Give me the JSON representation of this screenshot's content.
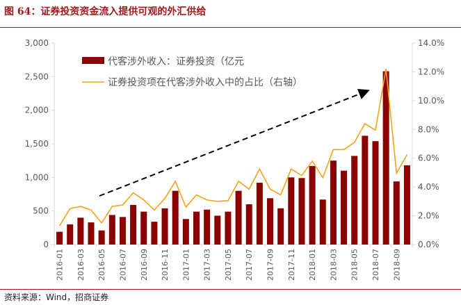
{
  "title": "图 64：证券投资资金流入提供可观的外汇供给",
  "source": "资料来源：Wind，招商证券",
  "chart_data": {
    "type": "bar+line",
    "x": [
      "2016-01",
      "2016-02",
      "2016-03",
      "2016-04",
      "2016-05",
      "2016-06",
      "2016-07",
      "2016-08",
      "2016-09",
      "2016-10",
      "2016-11",
      "2016-12",
      "2017-01",
      "2017-02",
      "2017-03",
      "2017-04",
      "2017-05",
      "2017-06",
      "2017-07",
      "2017-08",
      "2017-09",
      "2017-10",
      "2017-11",
      "2017-12",
      "2018-01",
      "2018-02",
      "2018-03",
      "2018-04",
      "2018-05",
      "2018-06",
      "2018-07",
      "2018-08",
      "2018-09",
      "2018-10"
    ],
    "x_tick_labels": [
      "2016-01",
      "2016-03",
      "2016-05",
      "2016-07",
      "2016-09",
      "2016-11",
      "2017-01",
      "2017-03",
      "2017-05",
      "2017-07",
      "2017-09",
      "2017-11",
      "2018-01",
      "2018-03",
      "2018-05",
      "2018-07",
      "2018-09"
    ],
    "series": [
      {
        "name": "代客涉外收入：证券投资（亿元",
        "type": "bar",
        "axis": "left",
        "color": "#8b0000",
        "values": [
          190,
          300,
          400,
          330,
          210,
          440,
          410,
          590,
          490,
          340,
          540,
          800,
          380,
          490,
          520,
          430,
          490,
          800,
          600,
          920,
          690,
          540,
          1000,
          990,
          1170,
          670,
          1250,
          1100,
          1320,
          1620,
          1540,
          2580,
          940,
          1180
        ]
      },
      {
        "name": "证券投资项在代客涉外收入中的占比（右轴）",
        "type": "line",
        "axis": "right",
        "color": "#f5a21b",
        "values": [
          1.3,
          2.5,
          2.65,
          2.4,
          1.5,
          2.65,
          2.75,
          3.6,
          3.1,
          2.4,
          3.2,
          4.4,
          2.6,
          3.45,
          3.1,
          3.0,
          3.05,
          4.4,
          3.85,
          5.25,
          3.85,
          3.45,
          5.25,
          4.8,
          5.8,
          4.65,
          6.6,
          6.6,
          7.1,
          8.4,
          7.95,
          12.2,
          4.95,
          6.25
        ]
      }
    ],
    "left_axis": {
      "range": [
        0,
        3000
      ],
      "ticks": [
        "0",
        "500",
        "1,000",
        "1,500",
        "2,000",
        "2,500",
        "3,000"
      ]
    },
    "right_axis": {
      "range": [
        0,
        14
      ],
      "ticks": [
        "0.0%",
        "2.0%",
        "4.0%",
        "6.0%",
        "8.0%",
        "10.0%",
        "12.0%",
        "14.0%"
      ]
    },
    "annotation": "dashed upward trend arrow",
    "legend": "top-center",
    "grid": false
  }
}
